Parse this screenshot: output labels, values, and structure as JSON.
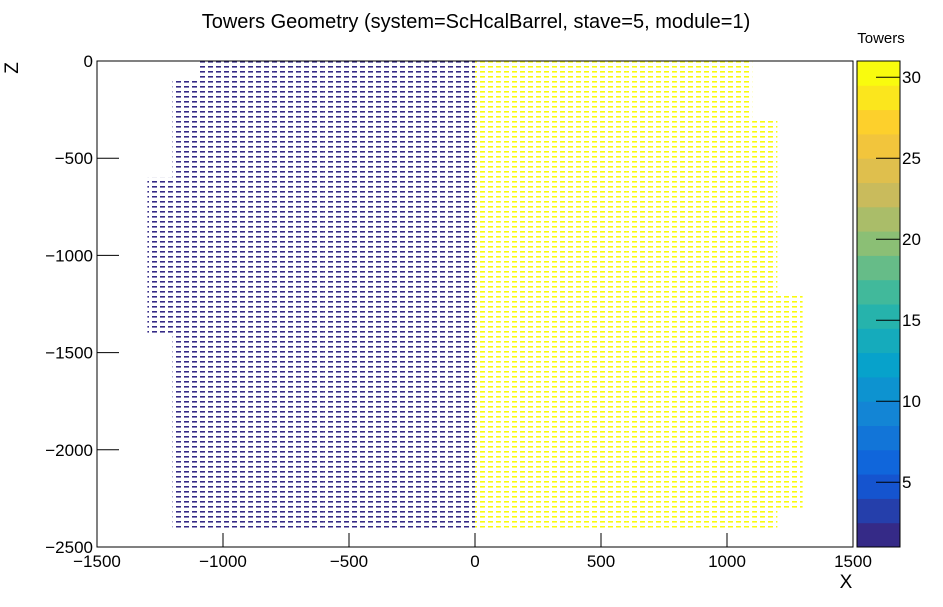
{
  "chart_data": {
    "type": "heatmap",
    "title": "Towers Geometry (system=ScHcalBarrel, stave=5, module=1)",
    "x_label": "X",
    "y_label": "Z",
    "colorbar_label": "Towers",
    "x_bins": [
      -1300,
      -1200,
      -1100,
      -1000,
      -900,
      -800,
      -700,
      -600,
      -500,
      -400,
      -300,
      -200,
      -100,
      0,
      100,
      200,
      300,
      400,
      500,
      600,
      700,
      800,
      900,
      1000,
      1100,
      1200,
      1300
    ],
    "y_bins": [
      0,
      -100,
      -200,
      -300,
      -400,
      -500,
      -600,
      -700,
      -800,
      -900,
      -1000,
      -1100,
      -1200,
      -1300,
      -1400,
      -1500,
      -1600,
      -1700,
      -1800,
      -1900,
      -2000,
      -2100,
      -2200,
      -2300,
      -2400
    ],
    "values": [
      [
        null,
        null,
        1,
        1,
        1,
        1,
        1,
        1,
        1,
        1,
        1,
        1,
        1,
        31,
        31,
        31,
        31,
        31,
        31,
        31,
        31,
        31,
        31,
        31,
        null,
        null
      ],
      [
        null,
        1,
        1,
        1,
        1,
        1,
        1,
        1,
        1,
        1,
        1,
        1,
        1,
        31,
        31,
        31,
        31,
        31,
        31,
        31,
        31,
        31,
        31,
        31,
        null,
        null
      ],
      [
        null,
        1,
        1,
        1,
        1,
        1,
        1,
        1,
        1,
        1,
        1,
        1,
        1,
        31,
        31,
        31,
        31,
        31,
        31,
        31,
        31,
        31,
        31,
        31,
        null,
        null
      ],
      [
        null,
        1,
        1,
        1,
        1,
        1,
        1,
        1,
        1,
        1,
        1,
        1,
        1,
        31,
        31,
        31,
        31,
        31,
        31,
        31,
        31,
        31,
        31,
        31,
        31,
        null
      ],
      [
        null,
        1,
        1,
        1,
        1,
        1,
        1,
        1,
        1,
        1,
        1,
        1,
        1,
        31,
        31,
        31,
        31,
        31,
        31,
        31,
        31,
        31,
        31,
        31,
        31,
        null
      ],
      [
        null,
        1,
        1,
        1,
        1,
        1,
        1,
        1,
        1,
        1,
        1,
        1,
        1,
        31,
        31,
        31,
        31,
        31,
        31,
        31,
        31,
        31,
        31,
        31,
        31,
        null
      ],
      [
        1,
        1,
        1,
        1,
        1,
        1,
        1,
        1,
        1,
        1,
        1,
        1,
        1,
        31,
        31,
        31,
        31,
        31,
        31,
        31,
        31,
        31,
        31,
        31,
        31,
        null
      ],
      [
        1,
        1,
        1,
        1,
        1,
        1,
        1,
        1,
        1,
        1,
        1,
        1,
        1,
        31,
        31,
        31,
        31,
        31,
        31,
        31,
        31,
        31,
        31,
        31,
        31,
        null
      ],
      [
        1,
        1,
        1,
        1,
        1,
        1,
        1,
        1,
        1,
        1,
        1,
        1,
        1,
        31,
        31,
        31,
        31,
        31,
        31,
        31,
        31,
        31,
        31,
        31,
        31,
        null
      ],
      [
        1,
        1,
        1,
        1,
        1,
        1,
        1,
        1,
        1,
        1,
        1,
        1,
        1,
        31,
        31,
        31,
        31,
        31,
        31,
        31,
        31,
        31,
        31,
        31,
        31,
        null
      ],
      [
        1,
        1,
        1,
        1,
        1,
        1,
        1,
        1,
        1,
        1,
        1,
        1,
        1,
        31,
        31,
        31,
        31,
        31,
        31,
        31,
        31,
        31,
        31,
        31,
        31,
        null
      ],
      [
        1,
        1,
        1,
        1,
        1,
        1,
        1,
        1,
        1,
        1,
        1,
        1,
        1,
        31,
        31,
        31,
        31,
        31,
        31,
        31,
        31,
        31,
        31,
        31,
        31,
        null
      ],
      [
        1,
        1,
        1,
        1,
        1,
        1,
        1,
        1,
        1,
        1,
        1,
        1,
        1,
        31,
        31,
        31,
        31,
        31,
        31,
        31,
        31,
        31,
        31,
        31,
        31,
        31
      ],
      [
        1,
        1,
        1,
        1,
        1,
        1,
        1,
        1,
        1,
        1,
        1,
        1,
        1,
        31,
        31,
        31,
        31,
        31,
        31,
        31,
        31,
        31,
        31,
        31,
        31,
        31
      ],
      [
        null,
        1,
        1,
        1,
        1,
        1,
        1,
        1,
        1,
        1,
        1,
        1,
        1,
        31,
        31,
        31,
        31,
        31,
        31,
        31,
        31,
        31,
        31,
        31,
        31,
        31
      ],
      [
        null,
        1,
        1,
        1,
        1,
        1,
        1,
        1,
        1,
        1,
        1,
        1,
        1,
        31,
        31,
        31,
        31,
        31,
        31,
        31,
        31,
        31,
        31,
        31,
        31,
        31
      ],
      [
        null,
        1,
        1,
        1,
        1,
        1,
        1,
        1,
        1,
        1,
        1,
        1,
        1,
        31,
        31,
        31,
        31,
        31,
        31,
        31,
        31,
        31,
        31,
        31,
        31,
        31
      ],
      [
        null,
        1,
        1,
        1,
        1,
        1,
        1,
        1,
        1,
        1,
        1,
        1,
        1,
        31,
        31,
        31,
        31,
        31,
        31,
        31,
        31,
        31,
        31,
        31,
        31,
        31
      ],
      [
        null,
        1,
        1,
        1,
        1,
        1,
        1,
        1,
        1,
        1,
        1,
        1,
        1,
        31,
        31,
        31,
        31,
        31,
        31,
        31,
        31,
        31,
        31,
        31,
        31,
        31
      ],
      [
        null,
        1,
        1,
        1,
        1,
        1,
        1,
        1,
        1,
        1,
        1,
        1,
        1,
        31,
        31,
        31,
        31,
        31,
        31,
        31,
        31,
        31,
        31,
        31,
        31,
        31
      ],
      [
        null,
        1,
        1,
        1,
        1,
        1,
        1,
        1,
        1,
        1,
        1,
        1,
        1,
        31,
        31,
        31,
        31,
        31,
        31,
        31,
        31,
        31,
        31,
        31,
        31,
        31
      ],
      [
        null,
        1,
        1,
        1,
        1,
        1,
        1,
        1,
        1,
        1,
        1,
        1,
        1,
        31,
        31,
        31,
        31,
        31,
        31,
        31,
        31,
        31,
        31,
        31,
        31,
        31
      ],
      [
        null,
        1,
        1,
        1,
        1,
        1,
        1,
        1,
        1,
        1,
        1,
        1,
        1,
        31,
        31,
        31,
        31,
        31,
        31,
        31,
        31,
        31,
        31,
        31,
        31,
        31
      ],
      [
        null,
        1,
        1,
        1,
        1,
        1,
        1,
        1,
        1,
        1,
        1,
        1,
        1,
        31,
        31,
        31,
        31,
        31,
        31,
        31,
        31,
        31,
        31,
        31,
        31,
        null
      ]
    ],
    "xlim": [
      -1500,
      1500
    ],
    "xticks": [
      {
        "value": -1500,
        "label": "−1500"
      },
      {
        "value": -1000,
        "label": "−1000"
      },
      {
        "value": -500,
        "label": "−500"
      },
      0,
      500,
      1000,
      1500
    ],
    "ylim": [
      -2500,
      0
    ],
    "yticks": [
      0,
      {
        "value": -500,
        "label": "−500"
      },
      {
        "value": -1000,
        "label": "−1000"
      },
      {
        "value": -1500,
        "label": "−1500"
      },
      {
        "value": -2000,
        "label": "−2000"
      },
      {
        "value": -2500,
        "label": "−2500"
      }
    ],
    "zlim": [
      1,
      31
    ],
    "zticks": [
      5,
      10,
      15,
      20,
      25,
      30
    ],
    "grid": false
  }
}
